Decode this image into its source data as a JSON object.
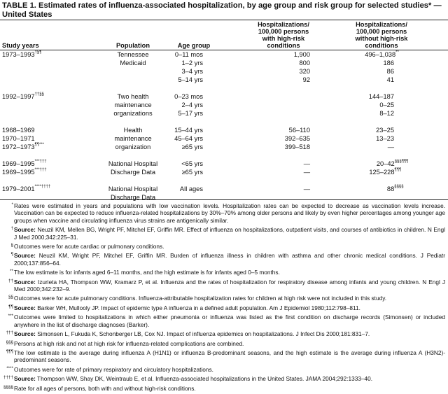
{
  "title": "TABLE 1. Estimated rates of influenza-associated hospitalization, by age group and risk group for selected studies* — United States",
  "headers": {
    "study_years": "Study years",
    "population": "Population",
    "age_group": "Age group",
    "with_high_risk": [
      "Hospitalizations/",
      "100,000 persons",
      "with high-risk",
      "conditions"
    ],
    "without_high_risk": [
      "Hospitalizations/",
      "100,000 persons",
      "without high-risk",
      "conditions"
    ]
  },
  "groups": [
    {
      "rows": [
        {
          "years": "1973–1993",
          "years_sup": "†§¶",
          "population": "Tennessee",
          "age": "0–11 mos",
          "high": "1,900",
          "without": "496–1,038",
          "without_sup": "**"
        },
        {
          "years": "",
          "years_sup": "",
          "population": "Medicaid",
          "age": "1–2 yrs",
          "high": "800",
          "without": "186",
          "without_sup": ""
        },
        {
          "years": "",
          "years_sup": "",
          "population": "",
          "age": "3–4 yrs",
          "high": "320",
          "without": "86",
          "without_sup": ""
        },
        {
          "years": "",
          "years_sup": "",
          "population": "",
          "age": "5–14 yrs",
          "high": "92",
          "without": "41",
          "without_sup": ""
        }
      ]
    },
    {
      "rows": [
        {
          "years": "1992–1997",
          "years_sup": "††§§",
          "population": "Two health",
          "age": "0–23 mos",
          "high": "",
          "without": "144–187",
          "without_sup": ""
        },
        {
          "years": "",
          "years_sup": "",
          "population": "maintenance",
          "age": "2–4 yrs",
          "high": "",
          "without": "0–25",
          "without_sup": ""
        },
        {
          "years": "",
          "years_sup": "",
          "population": "organizations",
          "age": "5–17 yrs",
          "high": "",
          "without": "8–12",
          "without_sup": ""
        }
      ]
    },
    {
      "rows": [
        {
          "years": "1968–1969",
          "years_sup": "",
          "population": "Health",
          "age": "15–44 yrs",
          "high": "56–110",
          "without": "23–25",
          "without_sup": ""
        },
        {
          "years": "1970–1971",
          "years_sup": "",
          "population": "maintenance",
          "age": "45–64 yrs",
          "high": "392–635",
          "without": "13–23",
          "without_sup": ""
        },
        {
          "years": "1972–1973",
          "years_sup": "¶¶***",
          "population": "organization",
          "age": "≥65 yrs",
          "high": "399–518",
          "without": "—",
          "without_sup": ""
        }
      ]
    },
    {
      "rows": [
        {
          "years": "1969–1995",
          "years_sup": "***†††",
          "population": "National Hospital",
          "age": "<65 yrs",
          "high": "—",
          "without": "20–42",
          "without_sup": "§§§¶¶¶"
        },
        {
          "years": "1969–1995",
          "years_sup": "***†††",
          "population": "Discharge Data",
          "age": "≥65 yrs",
          "high": "—",
          "without": "125–228",
          "without_sup": "¶¶¶"
        }
      ]
    },
    {
      "rows": [
        {
          "years": "1979–2001",
          "years_sup": "****††††",
          "population": "National Hospital",
          "age": "All ages",
          "high": "—",
          "without": "88",
          "without_sup": "§§§§"
        },
        {
          "years": "",
          "years_sup": "",
          "population": "Discharge Data",
          "age": "",
          "high": "",
          "without": "",
          "without_sup": ""
        }
      ]
    }
  ],
  "footnotes": [
    {
      "symbol": "*",
      "source_label": "",
      "text": "Rates were estimated in years and populations with low vaccination levels. Hospitalization rates can be expected to decrease as vaccination levels increase. Vaccination can be expected to reduce influenza-related hospitalizations by 30%–70% among older persons and likely by even higher percentages among younger age groups when vaccine and circulating influenza virus strains are antigenically similar."
    },
    {
      "symbol": "†",
      "source_label": "Source:",
      "text": "Neuzil KM, Mellen BG, Wright PF, Mitchel EF, Griffin MR. Effect of influenza on hospitalizations, outpatient visits, and courses of antibiotics in children. N Engl J Med 2000;342:225–31."
    },
    {
      "symbol": "§",
      "source_label": "",
      "text": "Outcomes were for acute cardiac or pulmonary conditions."
    },
    {
      "symbol": "¶",
      "source_label": "Source:",
      "text": "Neuzil KM, Wright PF, Mitchel EF, Griffin MR. Burden of influenza illness in children with asthma and other chronic medical conditions. J Pediatr 2000;137:856–64."
    },
    {
      "symbol": "**",
      "source_label": "",
      "text": "The low estimate is for infants aged 6–11 months, and the high estimate is for infants aged 0–5 months."
    },
    {
      "symbol": "††",
      "source_label": "Source:",
      "text": "Izurieta HA, Thompson WW, Kramarz P, et al. Influenza and the rates of hospitalization for respiratory disease among infants and young children. N Engl J Med 2000;342:232–9."
    },
    {
      "symbol": "§§",
      "source_label": "",
      "text": "Outcomes were for acute pulmonary conditions. Influenza-attributable hospitalization rates for children at high risk were not included in this study."
    },
    {
      "symbol": "¶¶",
      "source_label": "Source:",
      "text": "Barker WH, Mullooly JP. Impact of epidemic type A influenza in a defined adult population. Am J Epidemiol 1980;112:798–811."
    },
    {
      "symbol": "***",
      "source_label": "",
      "text": "Outcomes were limited to hospitalizations in which either pneumonia or influenza was listed as the first condition on discharge records (Simonsen) or included anywhere in the list of discharge diagnoses (Barker)."
    },
    {
      "symbol": "†††",
      "source_label": "Source:",
      "text": "Simonsen L, Fukuda K, Schonberger LB, Cox NJ. Impact of influenza epidemics on hospitalizations. J Infect Dis 2000;181:831–7."
    },
    {
      "symbol": "§§§",
      "source_label": "",
      "text": "Persons at high risk and not at high risk for influenza-related complications are combined."
    },
    {
      "symbol": "¶¶¶",
      "source_label": "",
      "text": "The low estimate is the average during influenza A (H1N1) or influenza B-predominant seasons, and the high estimate is the average during influenza A (H3N2)-predominant seasons."
    },
    {
      "symbol": "****",
      "source_label": "",
      "text": "Outcomes were for rate of primary respiratory and circulatory hospitalizations."
    },
    {
      "symbol": "††††",
      "source_label": "Source:",
      "text": "Thompson WW, Shay DK, Weintraub E, et al. Influenza-associated hospitalizations in the United States. JAMA 2004;292:1333–40."
    },
    {
      "symbol": "§§§§",
      "source_label": "",
      "text": "Rate for all ages of persons, both with and without high-risk conditions."
    }
  ]
}
